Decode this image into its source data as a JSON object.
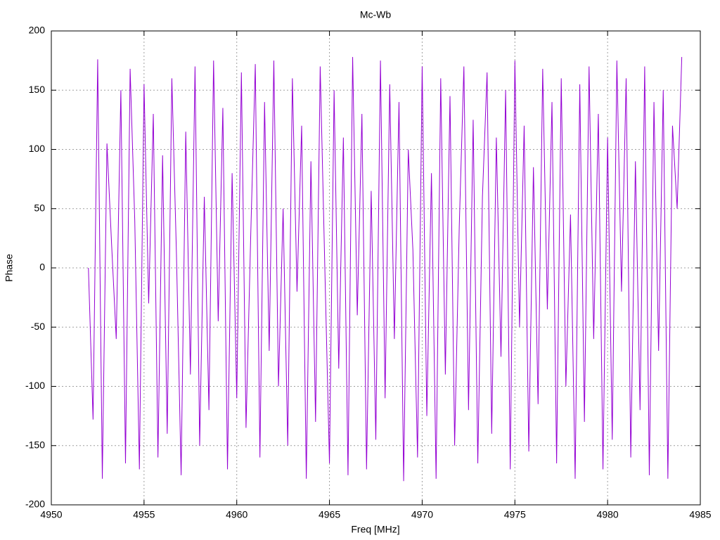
{
  "chart_data": {
    "type": "line",
    "title": "Mc-Wb",
    "x_label": "Freq [MHz]",
    "y_label": "Phase",
    "xlim": [
      4950,
      4985
    ],
    "xticks": [
      4950,
      4955,
      4960,
      4965,
      4970,
      4975,
      4980,
      4985
    ],
    "ylim": [
      -200,
      200
    ],
    "yticks": [
      -200,
      -150,
      -100,
      -50,
      0,
      50,
      100,
      150,
      200
    ],
    "grid": true,
    "x": [
      4952,
      4952.25,
      4952.5,
      4952.75,
      4953,
      4953.25,
      4953.5,
      4953.75,
      4954,
      4954.25,
      4954.5,
      4954.75,
      4955,
      4955.25,
      4955.5,
      4955.75,
      4956,
      4956.25,
      4956.5,
      4956.75,
      4957,
      4957.25,
      4957.5,
      4957.75,
      4958,
      4958.25,
      4958.5,
      4958.75,
      4959,
      4959.25,
      4959.5,
      4959.75,
      4960,
      4960.25,
      4960.5,
      4960.75,
      4961,
      4961.25,
      4961.5,
      4961.75,
      4962,
      4962.25,
      4962.5,
      4962.75,
      4963,
      4963.25,
      4963.5,
      4963.75,
      4964,
      4964.25,
      4964.5,
      4964.75,
      4965,
      4965.25,
      4965.5,
      4965.75,
      4966,
      4966.25,
      4966.5,
      4966.75,
      4967,
      4967.25,
      4967.5,
      4967.75,
      4968,
      4968.25,
      4968.5,
      4968.75,
      4969,
      4969.25,
      4969.5,
      4969.75,
      4970,
      4970.25,
      4970.5,
      4970.75,
      4971,
      4971.25,
      4971.5,
      4971.75,
      4972,
      4972.25,
      4972.5,
      4972.75,
      4973,
      4973.25,
      4973.5,
      4973.75,
      4974,
      4974.25,
      4974.5,
      4974.75,
      4975,
      4975.25,
      4975.5,
      4975.75,
      4976,
      4976.25,
      4976.5,
      4976.75,
      4977,
      4977.25,
      4977.5,
      4977.75,
      4978,
      4978.25,
      4978.5,
      4978.75,
      4979,
      4979.25,
      4979.5,
      4979.75,
      4980,
      4980.25,
      4980.5,
      4980.75,
      4981,
      4981.25,
      4981.5,
      4981.75,
      4982,
      4982.25,
      4982.5,
      4982.75,
      4983,
      4983.25,
      4983.5,
      4983.75,
      4984
    ],
    "series": [
      {
        "color": "#9400d3",
        "values": [
          0,
          -128,
          176,
          -178,
          105,
          20,
          -60,
          150,
          -165,
          168,
          40,
          -170,
          155,
          -30,
          130,
          -160,
          95,
          -140,
          160,
          10,
          -175,
          115,
          -90,
          170,
          -150,
          60,
          -120,
          175,
          -45,
          135,
          -170,
          80,
          -110,
          165,
          -135,
          25,
          172,
          -160,
          140,
          -70,
          175,
          -100,
          50,
          -150,
          160,
          -20,
          120,
          -178,
          90,
          -130,
          170,
          0,
          -165,
          150,
          -85,
          110,
          -175,
          178,
          -40,
          130,
          -170,
          65,
          -145,
          175,
          -110,
          155,
          -60,
          140,
          -180,
          100,
          15,
          -160,
          170,
          -125,
          80,
          -178,
          160,
          -90,
          145,
          -150,
          35,
          170,
          -120,
          125,
          -165,
          60,
          165,
          -140,
          110,
          -75,
          150,
          -170,
          175,
          -50,
          120,
          -155,
          85,
          -115,
          168,
          -35,
          140,
          -165,
          160,
          -100,
          45,
          -178,
          155,
          -130,
          170,
          -60,
          130,
          -170,
          110,
          -145,
          175,
          -20,
          160,
          -160,
          90,
          -120,
          170,
          -175,
          140,
          -70,
          150,
          -178,
          120,
          50,
          178
        ]
      }
    ]
  }
}
